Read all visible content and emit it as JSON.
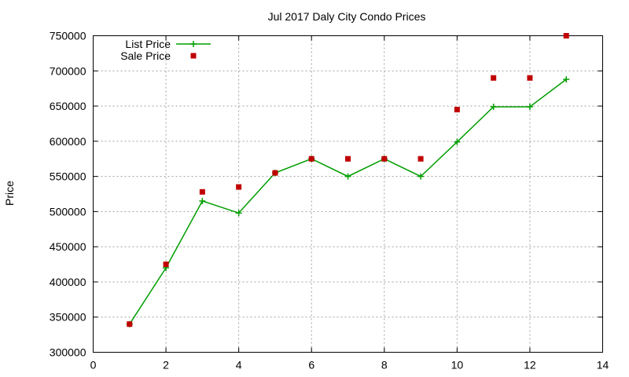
{
  "chart_data": {
    "type": "line",
    "title": "Jul 2017 Daly City Condo Prices",
    "xlabel": "",
    "ylabel": "Price",
    "xlim": [
      0,
      14
    ],
    "ylim": [
      300000,
      750000
    ],
    "xticks": [
      0,
      2,
      4,
      6,
      8,
      10,
      12,
      14
    ],
    "yticks": [
      300000,
      350000,
      400000,
      450000,
      500000,
      550000,
      600000,
      650000,
      700000,
      750000
    ],
    "grid": true,
    "legend_position": "top-left",
    "series": [
      {
        "name": "List Price",
        "style": "line-plus",
        "color": "#009e00",
        "x": [
          1,
          2,
          3,
          4,
          5,
          6,
          7,
          8,
          9,
          10,
          11,
          12,
          13
        ],
        "values": [
          340000,
          420000,
          515000,
          498000,
          555000,
          575000,
          550000,
          575000,
          550000,
          599000,
          649000,
          649000,
          688000
        ]
      },
      {
        "name": "Sale Price",
        "style": "square-points",
        "color": "#c00000",
        "x": [
          1,
          2,
          3,
          4,
          5,
          6,
          7,
          8,
          9,
          10,
          11,
          12,
          13
        ],
        "values": [
          340000,
          425000,
          528000,
          535000,
          555000,
          575000,
          575000,
          575000,
          575000,
          645000,
          690000,
          690000,
          750000
        ]
      }
    ]
  }
}
